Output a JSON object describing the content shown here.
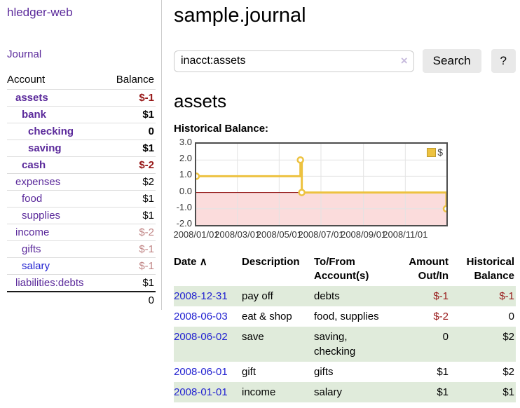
{
  "app": {
    "brand": "hledger-web",
    "nav_journal": "Journal"
  },
  "sidebar": {
    "header": {
      "account": "Account",
      "balance": "Balance"
    },
    "accounts": [
      {
        "name": "assets",
        "level": 1,
        "balance": "$-1",
        "bold": true,
        "balance_style": "neg-strong",
        "link_style": "purple"
      },
      {
        "name": "bank",
        "level": 2,
        "balance": "$1",
        "bold": true,
        "balance_style": "pos-strong",
        "link_style": "purple"
      },
      {
        "name": "checking",
        "level": 3,
        "balance": "0",
        "bold": true,
        "balance_style": "pos-strong",
        "link_style": "purple"
      },
      {
        "name": "saving",
        "level": 3,
        "balance": "$1",
        "bold": true,
        "balance_style": "pos-strong",
        "link_style": "purple"
      },
      {
        "name": "cash",
        "level": 2,
        "balance": "$-2",
        "bold": true,
        "balance_style": "neg-strong",
        "link_style": "purple"
      },
      {
        "name": "expenses",
        "level": 1,
        "balance": "$2",
        "bold": false,
        "balance_style": "pos",
        "link_style": "purple"
      },
      {
        "name": "food",
        "level": 2,
        "balance": "$1",
        "bold": false,
        "balance_style": "pos",
        "link_style": "purple"
      },
      {
        "name": "supplies",
        "level": 2,
        "balance": "$1",
        "bold": false,
        "balance_style": "pos",
        "link_style": "purple"
      },
      {
        "name": "income",
        "level": 1,
        "balance": "$-2",
        "bold": false,
        "balance_style": "neg",
        "link_style": "purple"
      },
      {
        "name": "gifts",
        "level": 2,
        "balance": "$-1",
        "bold": false,
        "balance_style": "neg",
        "link_style": "purple"
      },
      {
        "name": "salary",
        "level": 2,
        "balance": "$-1",
        "bold": false,
        "balance_style": "neg",
        "link_style": "blue"
      },
      {
        "name": "liabilities:debts",
        "level": 1,
        "balance": "$1",
        "bold": false,
        "balance_style": "pos",
        "link_style": "purple"
      }
    ],
    "total": "0"
  },
  "header": {
    "title": "sample.journal"
  },
  "search": {
    "value": "inacct:assets",
    "clear_label": "×",
    "button_label": "Search",
    "help_label": "?"
  },
  "main": {
    "account_title": "assets",
    "chart_label": "Historical Balance:"
  },
  "chart_data": {
    "type": "line",
    "title": "Historical Balance",
    "step": "after",
    "series": [
      {
        "name": "$",
        "color": "#edc240",
        "marker_fill": "#ffffff",
        "dates": [
          "2008-01-01",
          "2008-06-01",
          "2008-06-03",
          "2008-12-31"
        ],
        "points": [
          {
            "t": 0,
            "v": 1
          },
          {
            "t": 152,
            "v": 2
          },
          {
            "t": 154,
            "v": 0
          },
          {
            "t": 365,
            "v": -1
          }
        ]
      }
    ],
    "xlim": [
      0,
      365
    ],
    "ylim": [
      -2,
      3
    ],
    "yticks": [
      "3.0",
      "2.0",
      "1.0",
      "0.0",
      "-1.0",
      "-2.0"
    ],
    "xticks": [
      {
        "t": 0,
        "label": "2008/01/01"
      },
      {
        "t": 60,
        "label": "2008/03/01"
      },
      {
        "t": 121,
        "label": "2008/05/01"
      },
      {
        "t": 182,
        "label": "2008/07/01"
      },
      {
        "t": 244,
        "label": "2008/09/01"
      },
      {
        "t": 305,
        "label": "2008/11/01"
      }
    ],
    "grid": true,
    "legend_position": "top-right",
    "negative_fill": "#fbdcdc",
    "zero_line_color": "#8b0000",
    "grid_color": "#e3e3e3",
    "border_color": "#4d4d4d"
  },
  "register": {
    "headers": {
      "date": "Date",
      "sort_arrow": "∧",
      "description": "Description",
      "tofrom_line1": "To/From",
      "tofrom_line2": "Account(s)",
      "amount_line1": "Amount",
      "amount_line2": "Out/In",
      "hist_line1": "Historical",
      "hist_line2": "Balance"
    },
    "rows": [
      {
        "date": "2008-12-31",
        "description": "pay off",
        "accounts": "debts",
        "amount": "$-1",
        "balance": "$-1",
        "shade": true
      },
      {
        "date": "2008-06-03",
        "description": "eat & shop",
        "accounts": "food, supplies",
        "amount": "$-2",
        "balance": "0",
        "shade": false
      },
      {
        "date": "2008-06-02",
        "description": "save",
        "accounts": "saving,\nchecking",
        "amount": "0",
        "balance": "$2",
        "shade": true
      },
      {
        "date": "2008-06-01",
        "description": "gift",
        "accounts": "gifts",
        "amount": "$1",
        "balance": "$2",
        "shade": false
      },
      {
        "date": "2008-01-01",
        "description": "income",
        "accounts": "salary",
        "amount": "$1",
        "balance": "$1",
        "shade": true
      }
    ]
  }
}
